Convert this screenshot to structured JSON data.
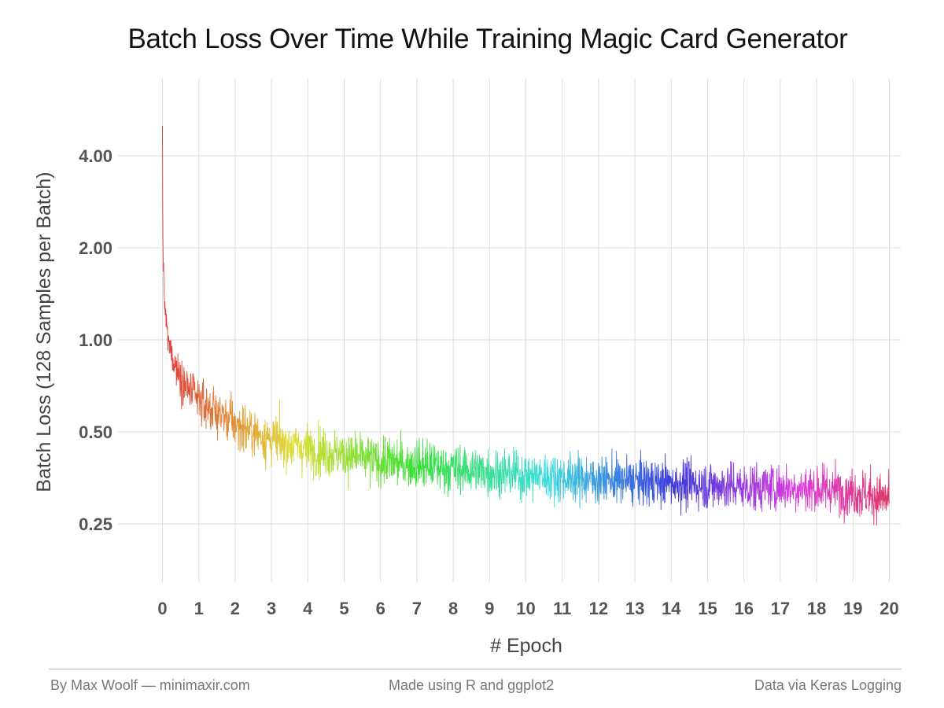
{
  "chart_data": {
    "type": "line",
    "title": "Batch Loss Over Time While Training Magic Card Generator",
    "xlabel": "# Epoch",
    "ylabel": "Batch Loss (128 Samples per Batch)",
    "x_range": [
      0,
      20
    ],
    "y_scale": "log",
    "ylim": [
      0.15,
      5.5
    ],
    "x_ticks": [
      "0",
      "1",
      "2",
      "3",
      "4",
      "5",
      "6",
      "7",
      "8",
      "9",
      "10",
      "11",
      "12",
      "13",
      "14",
      "15",
      "16",
      "17",
      "18",
      "19",
      "20"
    ],
    "y_ticks": [
      {
        "value": 4.0,
        "label": "4.00"
      },
      {
        "value": 2.0,
        "label": "2.00"
      },
      {
        "value": 1.0,
        "label": "1.00"
      },
      {
        "value": 0.5,
        "label": "0.50"
      },
      {
        "value": 0.25,
        "label": "0.25"
      }
    ],
    "grid": true,
    "legend": "none",
    "color_by": "epoch (rainbow hue gradient)",
    "series": [
      {
        "x": [
          0,
          0.01,
          0.03,
          0.06,
          0.1,
          0.15,
          0.25,
          0.4,
          0.6,
          0.8,
          1.0,
          1.5,
          2.0,
          2.5,
          3.0,
          4.0,
          5.0,
          6.0,
          7.0,
          8.0,
          9.0,
          10.0,
          11.0,
          12.0,
          13.0,
          14.0,
          15.0,
          16.0,
          17.0,
          18.0,
          19.0,
          20.0
        ],
        "y": [
          5.0,
          2.2,
          1.6,
          1.3,
          1.15,
          1.0,
          0.9,
          0.8,
          0.72,
          0.67,
          0.63,
          0.58,
          0.53,
          0.5,
          0.47,
          0.44,
          0.42,
          0.4,
          0.39,
          0.38,
          0.37,
          0.36,
          0.355,
          0.35,
          0.345,
          0.34,
          0.335,
          0.33,
          0.33,
          0.325,
          0.32,
          0.3
        ],
        "noise_band": [
          0.0,
          0.0,
          0.14,
          0.16,
          0.17,
          0.18,
          0.2,
          0.22,
          0.24,
          0.25,
          0.25,
          0.26,
          0.27,
          0.28,
          0.28,
          0.28,
          0.28,
          0.28,
          0.28,
          0.28,
          0.27,
          0.27,
          0.27,
          0.27,
          0.27,
          0.27,
          0.28,
          0.28,
          0.28,
          0.28,
          0.28,
          0.28
        ]
      }
    ]
  },
  "footer": {
    "left": "By Max Woolf — minimaxir.com",
    "center": "Made using R and ggplot2",
    "right": "Data via Keras Logging"
  }
}
